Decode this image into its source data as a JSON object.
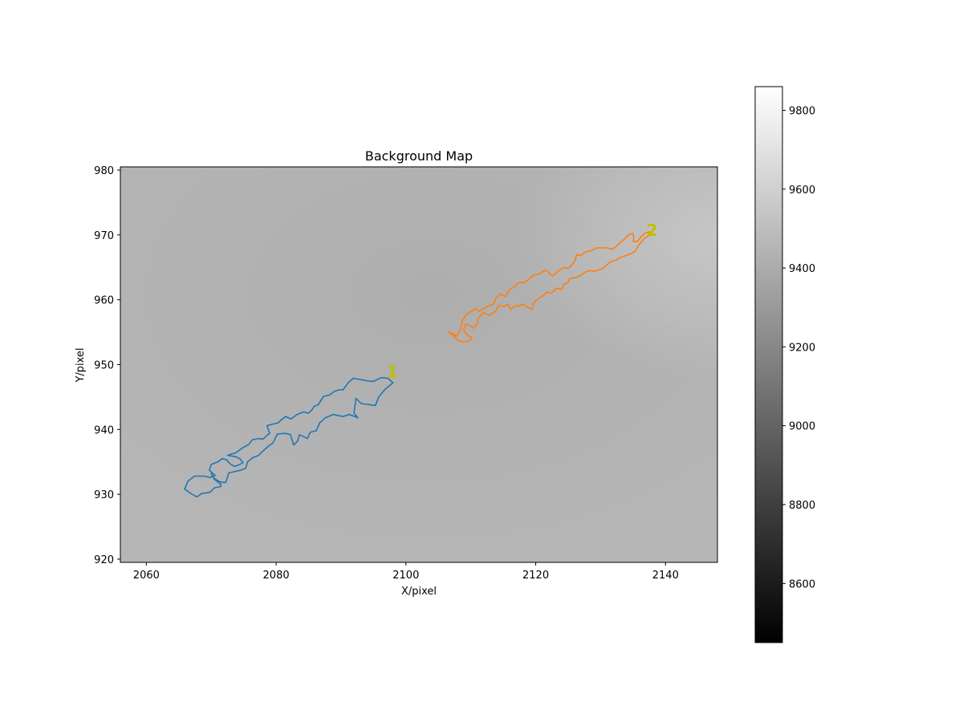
{
  "chart_data": {
    "type": "heatmap",
    "title": "Background Map",
    "xlabel": "X/pixel",
    "ylabel": "Y/pixel",
    "xlim": [
      2056,
      2148
    ],
    "ylim": [
      919.5,
      980.5
    ],
    "xticks": [
      2060,
      2080,
      2100,
      2120,
      2140
    ],
    "yticks": [
      920,
      930,
      940,
      950,
      960,
      970,
      980
    ],
    "colormap": "gray",
    "colorbar": {
      "range": [
        8450,
        9860
      ],
      "ticks": [
        8600,
        8800,
        9000,
        9200,
        9400,
        9600,
        9800
      ]
    },
    "background": {
      "min_value": 9470,
      "min_center": [
        2104,
        960
      ],
      "max_value": 9560,
      "max_corner": [
        2148,
        975
      ]
    },
    "label_color": "#bfbf00",
    "series": [
      {
        "color": "#1f77b4",
        "label": "1",
        "label_pos": [
          2097.9,
          948.9
        ],
        "points": [
          [
            2096.2,
            948.0
          ],
          [
            2097.2,
            947.9
          ],
          [
            2098.0,
            947.2
          ],
          [
            2096.8,
            946.2
          ],
          [
            2095.8,
            945.0
          ],
          [
            2095.3,
            943.7
          ],
          [
            2093.1,
            944.0
          ],
          [
            2092.3,
            944.8
          ],
          [
            2092.0,
            942.5
          ],
          [
            2092.6,
            941.8
          ],
          [
            2091.3,
            942.3
          ],
          [
            2090.3,
            942.0
          ],
          [
            2088.8,
            942.3
          ],
          [
            2087.6,
            941.8
          ],
          [
            2086.7,
            941.0
          ],
          [
            2086.2,
            939.8
          ],
          [
            2085.3,
            939.6
          ],
          [
            2084.8,
            938.6
          ],
          [
            2083.6,
            939.2
          ],
          [
            2083.3,
            938.2
          ],
          [
            2082.7,
            937.6
          ],
          [
            2082.2,
            939.2
          ],
          [
            2081.4,
            939.4
          ],
          [
            2080.2,
            939.3
          ],
          [
            2079.5,
            937.9
          ],
          [
            2078.9,
            937.5
          ],
          [
            2078.0,
            936.7
          ],
          [
            2077.3,
            936.0
          ],
          [
            2076.3,
            935.6
          ],
          [
            2075.6,
            935.0
          ],
          [
            2075.3,
            934.0
          ],
          [
            2074.5,
            933.7
          ],
          [
            2073.6,
            933.5
          ],
          [
            2072.7,
            933.3
          ],
          [
            2072.4,
            932.3
          ],
          [
            2072.2,
            931.8
          ],
          [
            2071.4,
            931.9
          ],
          [
            2070.5,
            932.4
          ],
          [
            2070.0,
            933.2
          ],
          [
            2070.5,
            932.3
          ],
          [
            2071.5,
            931.5
          ],
          [
            2071.5,
            931.2
          ],
          [
            2070.5,
            931.0
          ],
          [
            2069.8,
            930.3
          ],
          [
            2068.5,
            930.1
          ],
          [
            2067.8,
            929.6
          ],
          [
            2066.9,
            930.1
          ],
          [
            2065.9,
            930.8
          ],
          [
            2066.4,
            932.0
          ],
          [
            2067.4,
            932.8
          ],
          [
            2068.9,
            932.8
          ],
          [
            2069.8,
            932.6
          ],
          [
            2070.6,
            932.9
          ],
          [
            2069.7,
            933.7
          ],
          [
            2070.0,
            934.6
          ],
          [
            2071.0,
            935.0
          ],
          [
            2071.7,
            935.5
          ],
          [
            2072.4,
            935.3
          ],
          [
            2072.9,
            934.7
          ],
          [
            2073.6,
            934.3
          ],
          [
            2074.4,
            934.6
          ],
          [
            2074.9,
            934.9
          ],
          [
            2074.4,
            935.5
          ],
          [
            2073.8,
            935.8
          ],
          [
            2072.5,
            936.0
          ],
          [
            2073.8,
            936.4
          ],
          [
            2074.9,
            937.2
          ],
          [
            2075.8,
            937.7
          ],
          [
            2076.3,
            938.4
          ],
          [
            2077.3,
            938.6
          ],
          [
            2078.0,
            938.5
          ],
          [
            2078.6,
            939.1
          ],
          [
            2079.0,
            939.4
          ],
          [
            2078.6,
            940.6
          ],
          [
            2079.4,
            940.8
          ],
          [
            2080.3,
            941.0
          ],
          [
            2080.8,
            941.5
          ],
          [
            2081.5,
            942.0
          ],
          [
            2082.3,
            941.6
          ],
          [
            2083.2,
            942.3
          ],
          [
            2084.2,
            942.7
          ],
          [
            2085.0,
            942.5
          ],
          [
            2085.5,
            943.0
          ],
          [
            2085.9,
            943.6
          ],
          [
            2086.5,
            943.8
          ],
          [
            2087.3,
            945.1
          ],
          [
            2088.2,
            945.3
          ],
          [
            2089.0,
            945.9
          ],
          [
            2089.7,
            946.1
          ],
          [
            2090.3,
            946.1
          ],
          [
            2091.1,
            947.2
          ],
          [
            2091.9,
            947.9
          ],
          [
            2093.0,
            947.7
          ],
          [
            2094.0,
            947.5
          ],
          [
            2095.0,
            947.4
          ],
          [
            2096.2,
            948.0
          ]
        ]
      },
      {
        "color": "#ff7f0e",
        "label": "2",
        "label_pos": [
          2137.9,
          970.7
        ],
        "points": [
          [
            2137.9,
            970.2
          ],
          [
            2136.8,
            969.5
          ],
          [
            2136.0,
            968.6
          ],
          [
            2135.3,
            967.5
          ],
          [
            2134.7,
            967.1
          ],
          [
            2133.8,
            966.8
          ],
          [
            2133.0,
            966.5
          ],
          [
            2132.3,
            966.1
          ],
          [
            2131.4,
            965.8
          ],
          [
            2130.3,
            964.8
          ],
          [
            2129.0,
            964.4
          ],
          [
            2128.3,
            964.5
          ],
          [
            2127.7,
            964.3
          ],
          [
            2126.8,
            963.7
          ],
          [
            2126.0,
            963.4
          ],
          [
            2125.3,
            963.3
          ],
          [
            2124.9,
            962.6
          ],
          [
            2124.4,
            962.4
          ],
          [
            2124.0,
            961.6
          ],
          [
            2123.2,
            961.8
          ],
          [
            2122.4,
            961.0
          ],
          [
            2121.7,
            961.2
          ],
          [
            2121.1,
            960.6
          ],
          [
            2120.4,
            960.2
          ],
          [
            2119.6,
            959.4
          ],
          [
            2119.5,
            958.5
          ],
          [
            2118.8,
            958.8
          ],
          [
            2118.1,
            959.3
          ],
          [
            2117.4,
            959.1
          ],
          [
            2116.7,
            959.0
          ],
          [
            2116.2,
            958.5
          ],
          [
            2115.7,
            959.3
          ],
          [
            2115.1,
            959.0
          ],
          [
            2114.3,
            959.1
          ],
          [
            2113.8,
            958.2
          ],
          [
            2112.9,
            957.6
          ],
          [
            2111.9,
            958.0
          ],
          [
            2111.1,
            957.1
          ],
          [
            2111.0,
            956.4
          ],
          [
            2110.5,
            955.6
          ],
          [
            2109.9,
            956.0
          ],
          [
            2109.3,
            956.3
          ],
          [
            2108.9,
            955.5
          ],
          [
            2109.2,
            954.8
          ],
          [
            2110.2,
            954.1
          ],
          [
            2109.6,
            953.6
          ],
          [
            2108.7,
            953.5
          ],
          [
            2107.8,
            953.9
          ],
          [
            2107.4,
            954.4
          ],
          [
            2106.9,
            954.8
          ],
          [
            2106.5,
            955.0
          ],
          [
            2107.2,
            954.8
          ],
          [
            2107.8,
            954.4
          ],
          [
            2108.4,
            955.4
          ],
          [
            2108.7,
            956.8
          ],
          [
            2109.2,
            957.6
          ],
          [
            2110.0,
            958.2
          ],
          [
            2110.8,
            958.6
          ],
          [
            2111.3,
            958.2
          ],
          [
            2112.4,
            958.9
          ],
          [
            2113.6,
            959.4
          ],
          [
            2113.8,
            960.2
          ],
          [
            2114.5,
            960.9
          ],
          [
            2115.4,
            960.5
          ],
          [
            2115.9,
            961.5
          ],
          [
            2116.7,
            962.0
          ],
          [
            2117.3,
            962.6
          ],
          [
            2118.3,
            962.7
          ],
          [
            2119.1,
            963.3
          ],
          [
            2119.7,
            963.8
          ],
          [
            2120.6,
            964.0
          ],
          [
            2121.3,
            964.5
          ],
          [
            2121.7,
            964.5
          ],
          [
            2122.3,
            963.9
          ],
          [
            2122.7,
            963.7
          ],
          [
            2123.4,
            964.4
          ],
          [
            2124.2,
            964.9
          ],
          [
            2125.1,
            964.9
          ],
          [
            2125.6,
            965.4
          ],
          [
            2126.1,
            966.1
          ],
          [
            2126.3,
            967.0
          ],
          [
            2126.9,
            966.8
          ],
          [
            2127.7,
            967.4
          ],
          [
            2128.6,
            967.6
          ],
          [
            2129.3,
            968.0
          ],
          [
            2130.2,
            968.0
          ],
          [
            2131.0,
            968.0
          ],
          [
            2131.8,
            967.8
          ],
          [
            2132.4,
            968.2
          ],
          [
            2133.0,
            968.8
          ],
          [
            2133.7,
            969.4
          ],
          [
            2134.4,
            970.1
          ],
          [
            2135.0,
            970.2
          ],
          [
            2135.1,
            969.5
          ],
          [
            2135.0,
            969.0
          ],
          [
            2135.7,
            969.0
          ],
          [
            2136.3,
            969.8
          ],
          [
            2136.9,
            970.3
          ],
          [
            2137.6,
            970.5
          ],
          [
            2137.9,
            970.2
          ]
        ]
      }
    ]
  }
}
